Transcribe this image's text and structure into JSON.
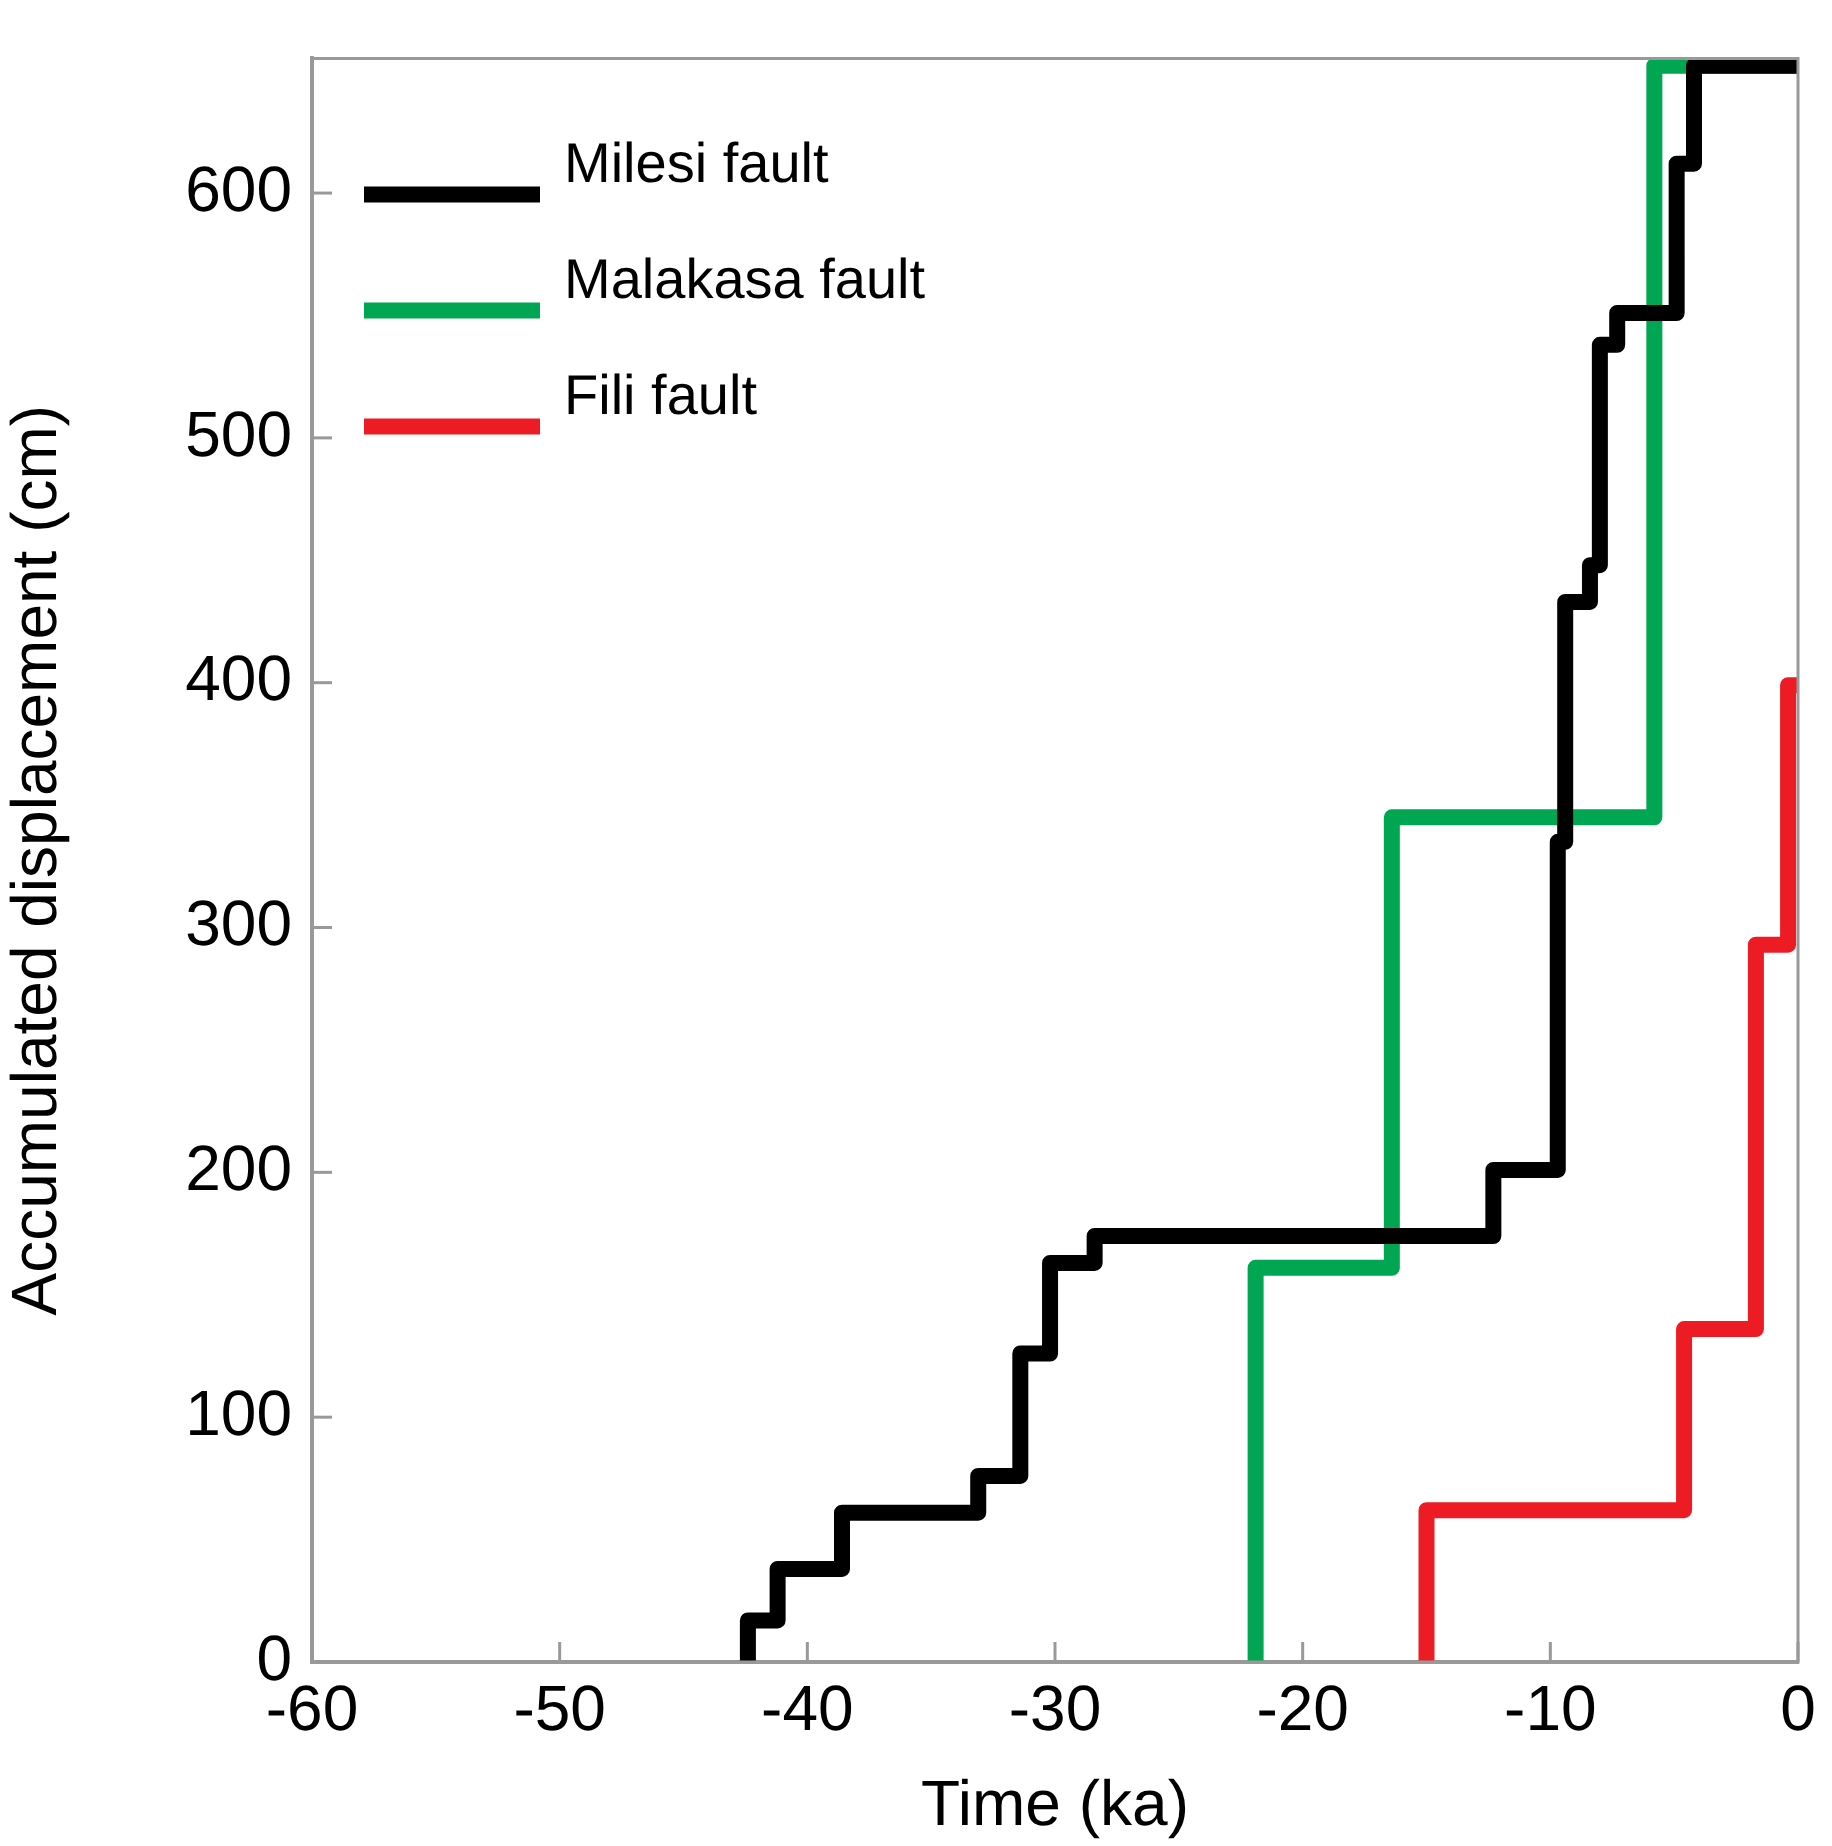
{
  "chart_data": {
    "type": "step",
    "xlabel": "Time (ka)",
    "ylabel": "Accumulated displacement (cm)",
    "xlim": [
      -60,
      0
    ],
    "xticks": [
      -60,
      -50,
      -40,
      -30,
      -20,
      -10,
      0
    ],
    "ylim": [
      0,
      655
    ],
    "yticks": [
      0,
      100,
      200,
      300,
      400,
      500,
      600
    ],
    "grid": false,
    "legend": "top left",
    "marker": "none",
    "line_style": "solid",
    "series": [
      {
        "name": "Milesi fault",
        "color": "#000000",
        "x": [
          -42.4,
          -42.4,
          -41.2,
          -38.6,
          -33.1,
          -31.4,
          -30.2,
          -28.4,
          -12.3,
          -9.7,
          -9.4,
          -8.4,
          -8.0,
          -7.3,
          -4.9,
          -4.2,
          0
        ],
        "values": [
          0,
          17,
          38,
          61,
          76,
          126,
          163,
          174,
          201,
          335,
          433,
          448,
          538,
          551,
          612,
          652,
          652
        ]
      },
      {
        "name": "Malakasa fault",
        "color": "#00a651",
        "x": [
          -21.9,
          -21.9,
          -16.4,
          -5.8,
          0
        ],
        "values": [
          0,
          161,
          345,
          652,
          652
        ]
      },
      {
        "name": "Fili fault",
        "color": "#ed1c24",
        "x": [
          -15,
          -15,
          -4.6,
          -1.7,
          -0.4,
          0
        ],
        "values": [
          0,
          62,
          136,
          293,
          399,
          399
        ]
      }
    ]
  }
}
